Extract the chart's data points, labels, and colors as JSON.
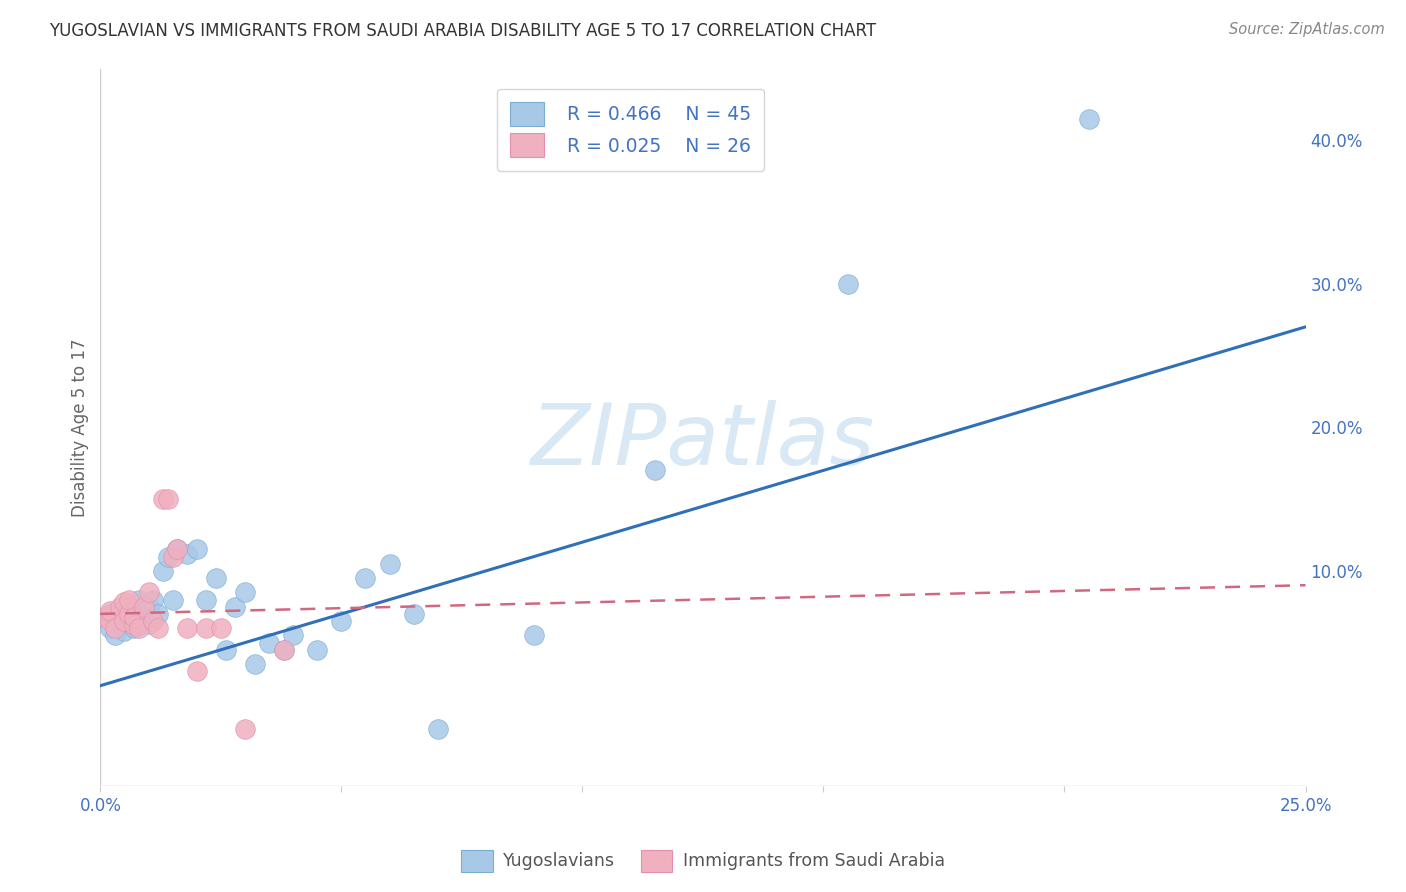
{
  "title": "YUGOSLAVIAN VS IMMIGRANTS FROM SAUDI ARABIA DISABILITY AGE 5 TO 17 CORRELATION CHART",
  "source": "Source: ZipAtlas.com",
  "ylabel": "Disability Age 5 to 17",
  "xlim": [
    0.0,
    0.25
  ],
  "ylim": [
    -0.05,
    0.45
  ],
  "x_ticks": [
    0.0,
    0.05,
    0.1,
    0.15,
    0.2,
    0.25
  ],
  "x_tick_labels": [
    "0.0%",
    "",
    "",
    "",
    "",
    "25.0%"
  ],
  "y_ticks_right": [
    0.0,
    0.1,
    0.2,
    0.3,
    0.4
  ],
  "y_tick_labels_right": [
    "",
    "10.0%",
    "20.0%",
    "30.0%",
    "40.0%"
  ],
  "legend_r1": "R = 0.466",
  "legend_n1": "N = 45",
  "legend_r2": "R = 0.025",
  "legend_n2": "N = 26",
  "blue_color": "#a8c8e8",
  "blue_edge_color": "#7aadd4",
  "blue_line_color": "#3070b8",
  "pink_color": "#f0b0c0",
  "pink_edge_color": "#e090a8",
  "pink_line_color": "#d06880",
  "watermark": "ZIPatlas",
  "blue_scatter_x": [
    0.001,
    0.002,
    0.002,
    0.003,
    0.003,
    0.004,
    0.004,
    0.005,
    0.005,
    0.006,
    0.006,
    0.007,
    0.007,
    0.008,
    0.008,
    0.009,
    0.01,
    0.01,
    0.011,
    0.012,
    0.013,
    0.014,
    0.015,
    0.016,
    0.018,
    0.02,
    0.022,
    0.024,
    0.026,
    0.028,
    0.03,
    0.032,
    0.035,
    0.038,
    0.04,
    0.045,
    0.05,
    0.055,
    0.06,
    0.065,
    0.07,
    0.09,
    0.115,
    0.155,
    0.205
  ],
  "blue_scatter_y": [
    0.068,
    0.07,
    0.06,
    0.065,
    0.055,
    0.072,
    0.063,
    0.068,
    0.058,
    0.075,
    0.065,
    0.07,
    0.06,
    0.08,
    0.062,
    0.068,
    0.075,
    0.063,
    0.08,
    0.07,
    0.1,
    0.11,
    0.08,
    0.115,
    0.112,
    0.115,
    0.08,
    0.095,
    0.045,
    0.075,
    0.085,
    0.035,
    0.05,
    0.045,
    0.055,
    0.045,
    0.065,
    0.095,
    0.105,
    0.07,
    -0.01,
    0.055,
    0.17,
    0.3,
    0.415
  ],
  "pink_scatter_x": [
    0.001,
    0.002,
    0.002,
    0.003,
    0.004,
    0.005,
    0.005,
    0.006,
    0.006,
    0.007,
    0.007,
    0.008,
    0.009,
    0.01,
    0.011,
    0.012,
    0.013,
    0.014,
    0.015,
    0.016,
    0.018,
    0.02,
    0.022,
    0.025,
    0.03,
    0.038
  ],
  "pink_scatter_y": [
    0.068,
    0.065,
    0.072,
    0.06,
    0.075,
    0.065,
    0.078,
    0.07,
    0.08,
    0.062,
    0.068,
    0.06,
    0.075,
    0.085,
    0.065,
    0.06,
    0.15,
    0.15,
    0.11,
    0.115,
    0.06,
    0.03,
    0.06,
    0.06,
    -0.01,
    0.045
  ],
  "blue_line_x": [
    0.0,
    0.25
  ],
  "blue_line_y": [
    0.02,
    0.27
  ],
  "pink_line_x": [
    0.0,
    0.25
  ],
  "pink_line_y": [
    0.07,
    0.09
  ],
  "grid_color": "#cccccc",
  "title_color": "#333333",
  "axis_color": "#4472c4",
  "source_color": "#888888",
  "ylabel_color": "#666666",
  "watermark_color": "#d8e8f4",
  "legend_text_color": "#4472c4",
  "bottom_legend_color": "#555555"
}
